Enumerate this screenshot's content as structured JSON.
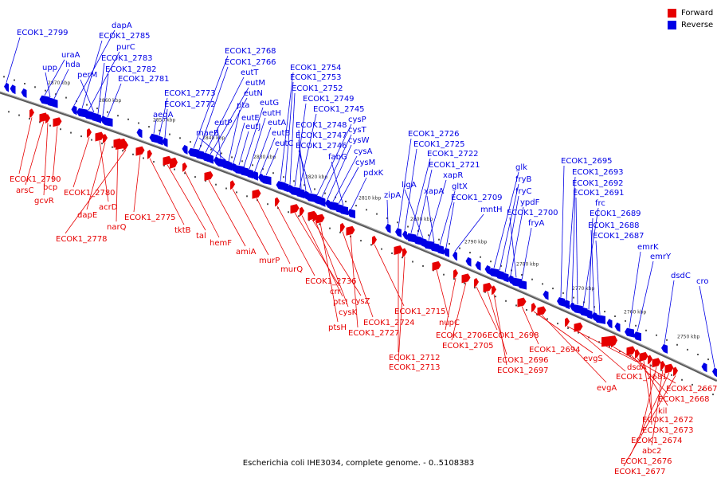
{
  "legend": [
    {
      "label": "Forward",
      "color": "#e60000"
    },
    {
      "label": "Reverse",
      "color": "#0000e6"
    }
  ],
  "caption": "Escherichia coli IHE3034, complete genome. - 0..5108383",
  "colors": {
    "forward": "#e60000",
    "reverse": "#0000e6",
    "backbone": "#808080"
  },
  "ticks": [
    "2870 kbp",
    "2860 kbp",
    "2850 kbp",
    "2840 kbp",
    "2830 kbp",
    "2820 kbp",
    "2810 kbp",
    "2800 kbp",
    "2790 kbp",
    "2780 kbp",
    "2770 kbp",
    "2760 kbp",
    "2750 kbp"
  ],
  "reverse_genes": [
    "ECOK1_2799",
    "uraA",
    "upp",
    "hda",
    "dapA",
    "ECOK1_2785",
    "purC",
    "perM",
    "ECOK1_2783",
    "ECOK1_2782",
    "ECOK1_2781",
    "aegA",
    "ECOK1_2773",
    "ECOK1_2772",
    "ECOK1_2768",
    "ECOK1_2766",
    "eutT",
    "eutM",
    "eutN",
    "eutP",
    "maeB",
    "pta",
    "eutE",
    "eutJ",
    "eutG",
    "eutH",
    "eutA",
    "eutB",
    "eutC",
    "ECOK1_2754",
    "ECOK1_2753",
    "ECOK1_2752",
    "ECOK1_2749",
    "ECOK1_2745",
    "cysP",
    "cysT",
    "cysW",
    "cysA",
    "cysM",
    "ECOK1_2748",
    "ECOK1_2747",
    "ECOK1_2746",
    "fabG",
    "pdxK",
    "ECOK1_2726",
    "ECOK1_2725",
    "ECOK1_2722",
    "ECOK1_2721",
    "ligA",
    "zipA",
    "xapR",
    "xapA",
    "gltX",
    "ECOK1_2709",
    "mntH",
    "glk",
    "fryB",
    "fryC",
    "ypdF",
    "ECOK1_2700",
    "fryA",
    "ECOK1_2695",
    "ECOK1_2693",
    "ECOK1_2692",
    "ECOK1_2691",
    "frc",
    "ECOK1_2689",
    "ECOK1_2688",
    "ECOK1_2687",
    "emrK",
    "emrY",
    "dsdC",
    "cro"
  ],
  "forward_genes": [
    "ECOK1_2790",
    "arsC",
    "gcvR",
    "bcp",
    "ECOK1_2780",
    "acrD",
    "dapE",
    "narQ",
    "ECOK1_2778",
    "ECOK1_2775",
    "tktB",
    "tal",
    "hemF",
    "amiA",
    "murP",
    "murQ",
    "ECOK1_2736",
    "crr",
    "ptsI",
    "cysZ",
    "cysK",
    "ptsH",
    "ECOK1_2724",
    "ECOK1_2727",
    "ECOK1_2715",
    "ECOK1_2712",
    "ECOK1_2713",
    "nupC",
    "ECOK1_2706",
    "ECOK1_2705",
    "ECOK1_2698",
    "ECOK1_2696",
    "ECOK1_2697",
    "ECOK1_2694",
    "evgS",
    "evgA",
    "dsdA",
    "ECOK1_2681",
    "ECOK1_2667",
    "ECOK1_2668",
    "kil",
    "ECOK1_2672",
    "ECOK1_2673",
    "ECOK1_2674",
    "abc2",
    "ECOK1_2676",
    "ECOK1_2677"
  ]
}
